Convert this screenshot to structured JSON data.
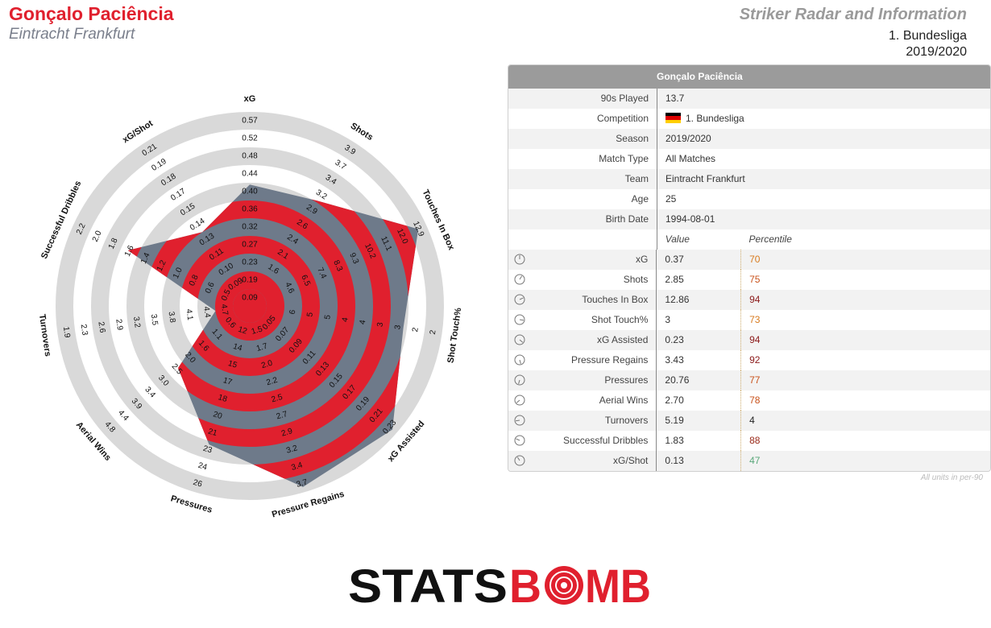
{
  "header": {
    "player_name": "Gonçalo Paciência",
    "team_name": "Eintracht Frankfurt",
    "title": "Striker Radar and Information",
    "competition": "1. Bundesliga",
    "season": "2019/2020"
  },
  "colors": {
    "accent_red": "#e0202e",
    "radar_slate": "#6e7a8a",
    "ring_gray": "#d9d9d9"
  },
  "chart_data": {
    "type": "radar",
    "axes": [
      {
        "label": "xG",
        "ticks": [
          "0.09",
          "0.19",
          "0.23",
          "0.27",
          "0.32",
          "0.36",
          "0.40",
          "0.44",
          "0.48",
          "0.52",
          "0.57"
        ],
        "value": 0.37
      },
      {
        "label": "Shots",
        "ticks": [
          "1.6",
          "2.1",
          "2.4",
          "2.6",
          "2.9",
          "3.2",
          "3.4",
          "3.7",
          "3.9"
        ],
        "value": 2.85
      },
      {
        "label": "Touches In Box",
        "ticks": [
          "4.6",
          "6.5",
          "7.4",
          "8.3",
          "9.3",
          "10.2",
          "11.1",
          "12.0",
          "12.9"
        ],
        "value": 12.86
      },
      {
        "label": "Shot Touch%",
        "ticks": [
          "6",
          "5",
          "5",
          "4",
          "4",
          "3",
          "3",
          "2",
          "2"
        ],
        "value": 3
      },
      {
        "label": "xG Assisted",
        "ticks": [
          "0.05",
          "0.07",
          "0.09",
          "0.11",
          "0.13",
          "0.15",
          "0.17",
          "0.19",
          "0.21",
          "0.23"
        ],
        "value": 0.23
      },
      {
        "label": "Pressure Regains",
        "ticks": [
          "1.5",
          "1.7",
          "2.0",
          "2.2",
          "2.5",
          "2.7",
          "2.9",
          "3.2",
          "3.4",
          "3.7"
        ],
        "value": 3.43
      },
      {
        "label": "Pressures",
        "ticks": [
          "12",
          "14",
          "15",
          "17",
          "18",
          "20",
          "21",
          "23",
          "24",
          "26"
        ],
        "value": 20.76
      },
      {
        "label": "Aerial Wins",
        "ticks": [
          "0.6",
          "1.1",
          "1.6",
          "2.0",
          "2.5",
          "3.0",
          "3.4",
          "3.9",
          "4.4",
          "4.8"
        ],
        "value": 2.7
      },
      {
        "label": "Turnovers",
        "ticks": [
          "4.7",
          "4.4",
          "4.1",
          "3.8",
          "3.5",
          "3.2",
          "2.9",
          "2.6",
          "2.3",
          "1.9"
        ],
        "value": 5.19
      },
      {
        "label": "Successful Dribbles",
        "ticks": [
          "0.5",
          "0.6",
          "0.8",
          "1.0",
          "1.2",
          "1.4",
          "1.6",
          "1.8",
          "2.0",
          "2.2"
        ],
        "value": 1.83
      },
      {
        "label": "xG/Shot",
        "ticks": [
          "0.09",
          "0.10",
          "0.11",
          "0.13",
          "0.14",
          "0.15",
          "0.17",
          "0.18",
          "0.19",
          "0.21"
        ],
        "value": 0.13
      }
    ],
    "fractions": [
      0.59,
      0.61,
      0.95,
      0.78,
      0.97,
      0.97,
      0.72,
      0.44,
      0.1,
      0.66,
      0.4
    ]
  },
  "table": {
    "title": "Gonçalo Paciência",
    "info_rows": [
      {
        "label": "90s Played",
        "value": "13.7"
      },
      {
        "label": "Competition",
        "value": "1. Bundesliga",
        "flag": true
      },
      {
        "label": "Season",
        "value": "2019/2020"
      },
      {
        "label": "Match Type",
        "value": "All Matches"
      },
      {
        "label": "Team",
        "value": "Eintracht Frankfurt"
      },
      {
        "label": "Age",
        "value": "25"
      },
      {
        "label": "Birth Date",
        "value": "1994-08-01"
      }
    ],
    "stat_header": {
      "value": "Value",
      "percentile": "Percentile"
    },
    "stat_rows": [
      {
        "label": "xG",
        "value": "0.37",
        "percentile": "70",
        "color": "#d87a1e"
      },
      {
        "label": "Shots",
        "value": "2.85",
        "percentile": "75",
        "color": "#c9521b"
      },
      {
        "label": "Touches In Box",
        "value": "12.86",
        "percentile": "94",
        "color": "#8b1a1a"
      },
      {
        "label": "Shot Touch%",
        "value": "3",
        "percentile": "73",
        "color": "#d87a1e"
      },
      {
        "label": "xG Assisted",
        "value": "0.23",
        "percentile": "94",
        "color": "#8b1a1a"
      },
      {
        "label": "Pressure Regains",
        "value": "3.43",
        "percentile": "92",
        "color": "#8b1a1a"
      },
      {
        "label": "Pressures",
        "value": "20.76",
        "percentile": "77",
        "color": "#c9521b"
      },
      {
        "label": "Aerial Wins",
        "value": "2.70",
        "percentile": "78",
        "color": "#c9521b"
      },
      {
        "label": "Turnovers",
        "value": "5.19",
        "percentile": "4",
        "color": "#222222"
      },
      {
        "label": "Successful Dribbles",
        "value": "1.83",
        "percentile": "88",
        "color": "#9a2a1a"
      },
      {
        "label": "xG/Shot",
        "value": "0.13",
        "percentile": "47",
        "color": "#5aa87a"
      }
    ],
    "footnote": "All units in per-90"
  },
  "logo": {
    "part1": "STATS",
    "part2": "B",
    "part3": "MB",
    "icon": "target-icon"
  }
}
